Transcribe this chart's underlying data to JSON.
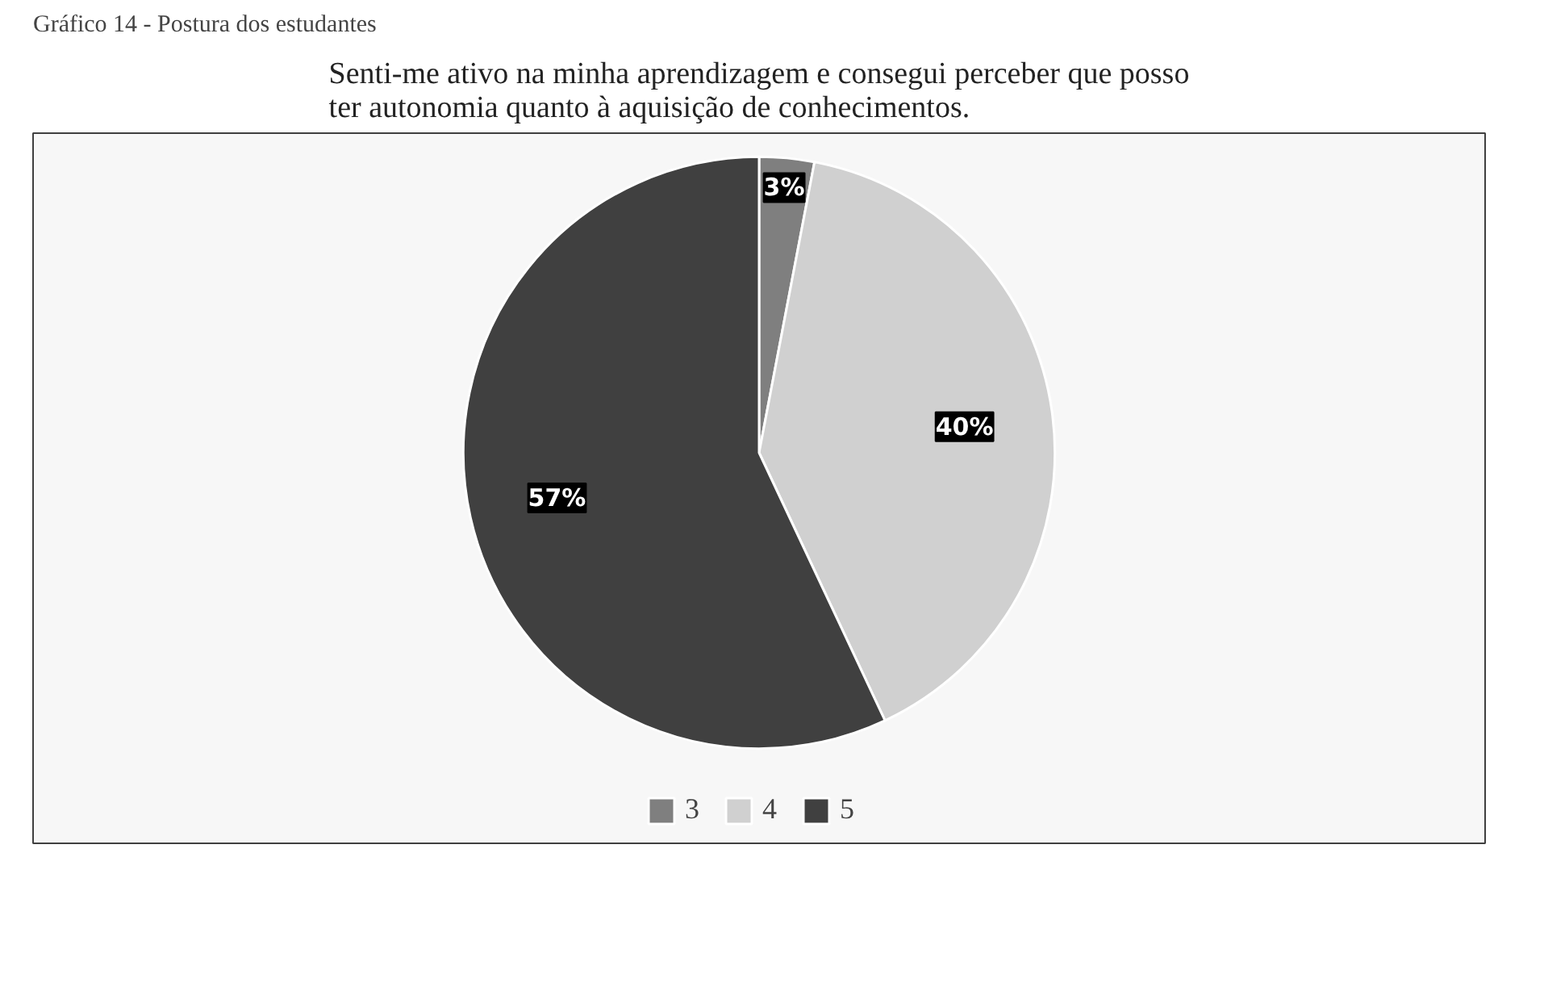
{
  "chart_data": {
    "type": "pie",
    "title": "Senti-me ativo na minha aprendizagem e consegui perceber que posso\nter autonomia quanto à aquisição de conhecimentos.",
    "annotations": [
      "Gráfico 14 - Postura dos estudantes"
    ],
    "categories": [
      "3",
      "4",
      "5"
    ],
    "values": [
      3,
      40,
      57
    ],
    "colors": [
      "#7f7f7f",
      "#d0d0d0",
      "#404040"
    ],
    "value_labels": [
      "3%",
      "40%",
      "57%"
    ],
    "legend": "bottom"
  }
}
